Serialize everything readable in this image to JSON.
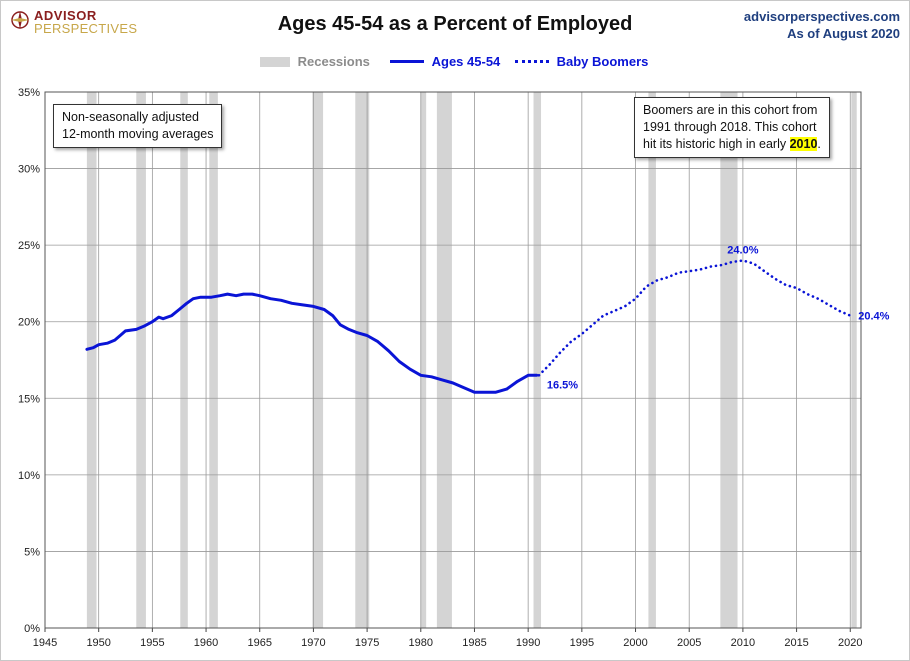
{
  "header": {
    "brand_line1": "ADVISOR",
    "brand_line2": "PERSPECTIVES",
    "title": "Ages 45-54 as a Percent of Employed",
    "site": "advisorperspectives.com",
    "as_of": "As of August 2020"
  },
  "legend": {
    "recessions": "Recessions",
    "ages": "Ages 45-54",
    "boomers": "Baby Boomers"
  },
  "notes": {
    "left_line1": "Non-seasonally adjusted",
    "left_line2": "12-month moving averages",
    "right_line1": "Boomers are in this cohort from",
    "right_line2": "1991  through 2018.  This cohort",
    "right_line3_prefix": "hit its historic high in early ",
    "right_line3_highlight": "2010",
    "right_line3_suffix": "."
  },
  "colors": {
    "series": "#0a14d6",
    "recession": "#d4d4d4",
    "grid": "#9a9a9a",
    "highlight": "#ffff00"
  },
  "chart_data": {
    "type": "line",
    "title": "Ages 45-54 as a Percent of Employed",
    "xlim": [
      1945,
      2021
    ],
    "ylim": [
      0,
      35
    ],
    "x_ticks": [
      1945,
      1950,
      1955,
      1960,
      1965,
      1970,
      1975,
      1980,
      1985,
      1990,
      1995,
      2000,
      2005,
      2010,
      2015,
      2020
    ],
    "y_ticks": [
      0,
      5,
      10,
      15,
      20,
      25,
      30,
      35
    ],
    "y_tick_labels": [
      "0%",
      "5%",
      "10%",
      "15%",
      "20%",
      "25%",
      "30%",
      "35%"
    ],
    "grid": true,
    "legend_position": "top",
    "recessions": [
      [
        1948.9,
        1949.8
      ],
      [
        1953.5,
        1954.4
      ],
      [
        1957.6,
        1958.3
      ],
      [
        1960.3,
        1961.1
      ],
      [
        1969.9,
        1970.9
      ],
      [
        1973.9,
        1975.2
      ],
      [
        1980.0,
        1980.5
      ],
      [
        1981.5,
        1982.9
      ],
      [
        1990.5,
        1991.2
      ],
      [
        2001.2,
        2001.9
      ],
      [
        2007.9,
        2009.5
      ],
      [
        2020.1,
        2020.6
      ]
    ],
    "series": [
      {
        "name": "Ages 45-54",
        "style": "solid",
        "points": [
          [
            1948.9,
            18.2
          ],
          [
            1949.5,
            18.3
          ],
          [
            1950.0,
            18.5
          ],
          [
            1950.8,
            18.6
          ],
          [
            1951.5,
            18.8
          ],
          [
            1952.0,
            19.1
          ],
          [
            1952.5,
            19.4
          ],
          [
            1953.5,
            19.5
          ],
          [
            1954.2,
            19.7
          ],
          [
            1955.0,
            20.0
          ],
          [
            1955.6,
            20.3
          ],
          [
            1956.0,
            20.2
          ],
          [
            1956.8,
            20.4
          ],
          [
            1957.5,
            20.8
          ],
          [
            1958.2,
            21.2
          ],
          [
            1958.8,
            21.5
          ],
          [
            1959.5,
            21.6
          ],
          [
            1960.5,
            21.6
          ],
          [
            1961.3,
            21.7
          ],
          [
            1962.0,
            21.8
          ],
          [
            1962.8,
            21.7
          ],
          [
            1963.5,
            21.8
          ],
          [
            1964.3,
            21.8
          ],
          [
            1965.0,
            21.7
          ],
          [
            1966.0,
            21.5
          ],
          [
            1967.0,
            21.4
          ],
          [
            1968.0,
            21.2
          ],
          [
            1969.0,
            21.1
          ],
          [
            1970.0,
            21.0
          ],
          [
            1971.0,
            20.8
          ],
          [
            1971.8,
            20.4
          ],
          [
            1972.5,
            19.8
          ],
          [
            1973.3,
            19.5
          ],
          [
            1974.0,
            19.3
          ],
          [
            1975.0,
            19.1
          ],
          [
            1976.0,
            18.7
          ],
          [
            1977.0,
            18.1
          ],
          [
            1978.0,
            17.4
          ],
          [
            1979.0,
            16.9
          ],
          [
            1980.0,
            16.5
          ],
          [
            1981.0,
            16.4
          ],
          [
            1982.0,
            16.2
          ],
          [
            1983.0,
            16.0
          ],
          [
            1984.0,
            15.7
          ],
          [
            1985.0,
            15.4
          ],
          [
            1986.0,
            15.4
          ],
          [
            1987.0,
            15.4
          ],
          [
            1988.0,
            15.6
          ],
          [
            1989.0,
            16.1
          ],
          [
            1990.0,
            16.5
          ],
          [
            1990.8,
            16.5
          ]
        ]
      },
      {
        "name": "Baby Boomers",
        "style": "dotted",
        "points": [
          [
            1991.0,
            16.5
          ],
          [
            1992.0,
            17.2
          ],
          [
            1993.0,
            18.0
          ],
          [
            1994.0,
            18.7
          ],
          [
            1995.0,
            19.2
          ],
          [
            1996.0,
            19.8
          ],
          [
            1997.0,
            20.4
          ],
          [
            1998.0,
            20.7
          ],
          [
            1999.0,
            21.0
          ],
          [
            2000.0,
            21.5
          ],
          [
            2001.0,
            22.3
          ],
          [
            2002.0,
            22.7
          ],
          [
            2003.0,
            22.9
          ],
          [
            2004.0,
            23.2
          ],
          [
            2005.0,
            23.3
          ],
          [
            2006.0,
            23.4
          ],
          [
            2007.0,
            23.6
          ],
          [
            2008.0,
            23.7
          ],
          [
            2009.0,
            23.9
          ],
          [
            2010.0,
            24.0
          ],
          [
            2011.0,
            23.8
          ],
          [
            2012.0,
            23.3
          ],
          [
            2013.0,
            22.8
          ],
          [
            2014.0,
            22.4
          ],
          [
            2015.0,
            22.2
          ],
          [
            2016.0,
            21.8
          ],
          [
            2017.0,
            21.5
          ],
          [
            2018.0,
            21.1
          ],
          [
            2019.0,
            20.7
          ],
          [
            2020.0,
            20.4
          ]
        ]
      }
    ],
    "annotations": [
      {
        "x": 1991.0,
        "y": 16.5,
        "label": "16.5%"
      },
      {
        "x": 2010.0,
        "y": 24.0,
        "label": "24.0%"
      },
      {
        "x": 2020.0,
        "y": 20.4,
        "label": "20.4%"
      }
    ]
  }
}
